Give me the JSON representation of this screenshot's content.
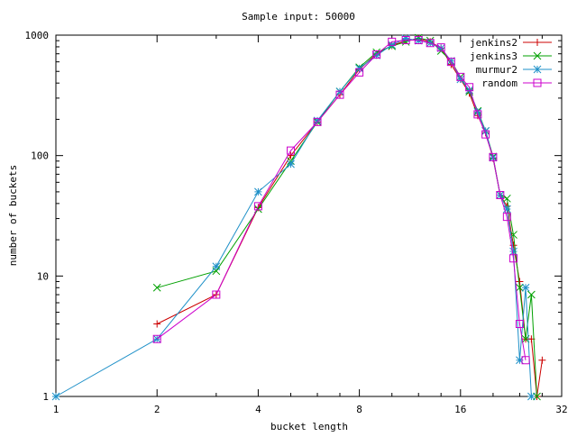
{
  "chart_data": {
    "type": "line",
    "title": "Sample input: 50000",
    "xlabel": "bucket length",
    "ylabel": "number of buckets",
    "xscale": "log2",
    "yscale": "log10",
    "xlim": [
      1,
      32
    ],
    "ylim": [
      1,
      1000
    ],
    "xticks": [
      1,
      2,
      4,
      8,
      16,
      32
    ],
    "xtick_labels": [
      "1",
      "2",
      "4",
      "8",
      "16",
      "32"
    ],
    "yticks": [
      1,
      10,
      100,
      1000
    ],
    "ytick_labels": [
      "1",
      "10",
      "100",
      "1000"
    ],
    "grid": false,
    "legend_position": "top-right",
    "series": [
      {
        "name": "jenkins2",
        "color": "#cc0000",
        "marker": "plus",
        "x": [
          2,
          3,
          4,
          5,
          6,
          7,
          8,
          9,
          10,
          11,
          12,
          13,
          14,
          15,
          16,
          17,
          18,
          19,
          20,
          21,
          22,
          23,
          24,
          25,
          26,
          27,
          28
        ],
        "y": [
          4,
          7,
          37,
          100,
          190,
          320,
          520,
          700,
          820,
          900,
          930,
          880,
          780,
          570,
          430,
          330,
          215,
          155,
          95,
          47,
          38,
          18,
          9,
          3,
          3,
          1,
          2
        ]
      },
      {
        "name": "jenkins3",
        "color": "#00a000",
        "marker": "cross",
        "x": [
          2,
          3,
          4,
          5,
          6,
          7,
          8,
          9,
          10,
          11,
          12,
          13,
          14,
          15,
          16,
          17,
          18,
          19,
          20,
          21,
          22,
          23,
          24,
          25,
          26,
          27
        ],
        "y": [
          8,
          11,
          36,
          90,
          190,
          340,
          540,
          720,
          810,
          880,
          950,
          900,
          740,
          610,
          450,
          340,
          235,
          160,
          98,
          47,
          44,
          22,
          8,
          3,
          7,
          1
        ]
      },
      {
        "name": "murmur2",
        "color": "#1e90c8",
        "marker": "star",
        "x": [
          1,
          2,
          3,
          4,
          5,
          6,
          7,
          8,
          9,
          10,
          11,
          12,
          13,
          14,
          15,
          16,
          17,
          18,
          19,
          20,
          21,
          22,
          23,
          24,
          25,
          26
        ],
        "y": [
          1,
          3,
          12,
          50,
          85,
          195,
          340,
          530,
          680,
          830,
          940,
          900,
          860,
          780,
          610,
          430,
          350,
          230,
          160,
          96,
          47,
          36,
          16,
          2,
          8,
          1
        ]
      },
      {
        "name": "random",
        "color": "#cc00cc",
        "marker": "box",
        "x": [
          2,
          3,
          4,
          5,
          6,
          7,
          8,
          9,
          10,
          11,
          12,
          13,
          14,
          15,
          16,
          17,
          18,
          19,
          20,
          21,
          22,
          23,
          24,
          25
        ],
        "y": [
          3,
          7,
          38,
          110,
          190,
          320,
          490,
          690,
          880,
          910,
          910,
          860,
          790,
          600,
          450,
          370,
          220,
          150,
          97,
          47,
          31,
          14,
          4,
          2
        ]
      }
    ]
  }
}
